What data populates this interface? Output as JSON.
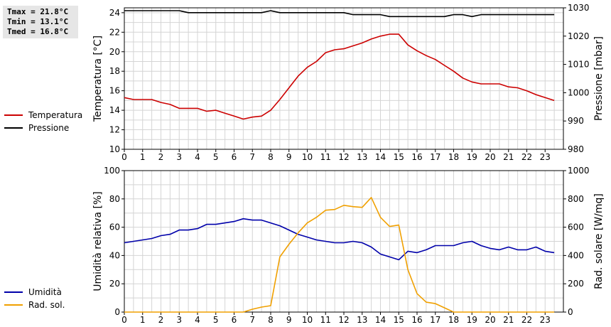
{
  "stats": {
    "tmax": "Tmax = 21.8°C",
    "tmin": "Tmin = 13.1°C",
    "tmed": "Tmed = 16.8°C"
  },
  "chart_data": [
    {
      "type": "line",
      "xlim": [
        0,
        24
      ],
      "x_ticks": [
        "0",
        "1",
        "2",
        "3",
        "4",
        "5",
        "6",
        "7",
        "8",
        "9",
        "10",
        "11",
        "12",
        "13",
        "14",
        "15",
        "16",
        "17",
        "18",
        "19",
        "20",
        "21",
        "22",
        "23"
      ],
      "ylabel": "Temperatura [°C]",
      "ylim": [
        10,
        24.5
      ],
      "y_ticks": [
        "10",
        "12",
        "14",
        "16",
        "18",
        "20",
        "22",
        "24"
      ],
      "y2label": "Pressione [mbar]",
      "y2lim": [
        980,
        1030
      ],
      "y2_ticks": [
        "980",
        "990",
        "1000",
        "1010",
        "1020",
        "1030"
      ],
      "grid": true,
      "legend_placement": "left",
      "series": [
        {
          "name": "Temperatura",
          "axis": "left",
          "color": "#cc0000",
          "points": [
            [
              0,
              15.3
            ],
            [
              0.5,
              15.1
            ],
            [
              1,
              15.1
            ],
            [
              1.5,
              15.1
            ],
            [
              2,
              14.8
            ],
            [
              2.5,
              14.6
            ],
            [
              3,
              14.2
            ],
            [
              3.5,
              14.2
            ],
            [
              4,
              14.2
            ],
            [
              4.5,
              13.9
            ],
            [
              5,
              14.0
            ],
            [
              5.5,
              13.7
            ],
            [
              6,
              13.4
            ],
            [
              6.5,
              13.1
            ],
            [
              7,
              13.3
            ],
            [
              7.5,
              13.4
            ],
            [
              8,
              14.0
            ],
            [
              8.5,
              15.1
            ],
            [
              9,
              16.3
            ],
            [
              9.5,
              17.5
            ],
            [
              10,
              18.4
            ],
            [
              10.5,
              19.0
            ],
            [
              11,
              19.9
            ],
            [
              11.5,
              20.2
            ],
            [
              12,
              20.3
            ],
            [
              12.5,
              20.6
            ],
            [
              13,
              20.9
            ],
            [
              13.5,
              21.3
            ],
            [
              14,
              21.6
            ],
            [
              14.5,
              21.8
            ],
            [
              15,
              21.8
            ],
            [
              15.5,
              20.7
            ],
            [
              16,
              20.1
            ],
            [
              16.5,
              19.6
            ],
            [
              17,
              19.2
            ],
            [
              17.5,
              18.6
            ],
            [
              18,
              18.0
            ],
            [
              18.5,
              17.3
            ],
            [
              19,
              16.9
            ],
            [
              19.5,
              16.7
            ],
            [
              20,
              16.7
            ],
            [
              20.5,
              16.7
            ],
            [
              21,
              16.4
            ],
            [
              21.5,
              16.3
            ],
            [
              22,
              16.0
            ],
            [
              22.5,
              15.6
            ],
            [
              23,
              15.3
            ],
            [
              23.5,
              15.0
            ]
          ]
        },
        {
          "name": "Pressione",
          "axis": "right",
          "color": "#000000",
          "points": [
            [
              0,
              1029.0
            ],
            [
              0.5,
              1029.0
            ],
            [
              1,
              1029.0
            ],
            [
              1.5,
              1029.0
            ],
            [
              2,
              1029.0
            ],
            [
              2.5,
              1029.0
            ],
            [
              3,
              1029.0
            ],
            [
              3.5,
              1028.3
            ],
            [
              4,
              1028.3
            ],
            [
              4.5,
              1028.3
            ],
            [
              5,
              1028.3
            ],
            [
              5.5,
              1028.3
            ],
            [
              6,
              1028.3
            ],
            [
              6.5,
              1028.3
            ],
            [
              7,
              1028.3
            ],
            [
              7.5,
              1028.3
            ],
            [
              8,
              1029.0
            ],
            [
              8.5,
              1028.3
            ],
            [
              9,
              1028.3
            ],
            [
              9.5,
              1028.3
            ],
            [
              10,
              1028.3
            ],
            [
              10.5,
              1028.3
            ],
            [
              11,
              1028.3
            ],
            [
              11.5,
              1028.3
            ],
            [
              12,
              1028.3
            ],
            [
              12.5,
              1027.6
            ],
            [
              13,
              1027.6
            ],
            [
              13.5,
              1027.6
            ],
            [
              14,
              1027.6
            ],
            [
              14.5,
              1026.9
            ],
            [
              15,
              1026.9
            ],
            [
              15.5,
              1026.9
            ],
            [
              16,
              1026.9
            ],
            [
              16.5,
              1026.9
            ],
            [
              17,
              1026.9
            ],
            [
              17.5,
              1026.9
            ],
            [
              18,
              1027.6
            ],
            [
              18.5,
              1027.6
            ],
            [
              19,
              1026.9
            ],
            [
              19.5,
              1027.6
            ],
            [
              20,
              1027.6
            ],
            [
              20.5,
              1027.6
            ],
            [
              21,
              1027.6
            ],
            [
              21.5,
              1027.6
            ],
            [
              22,
              1027.6
            ],
            [
              22.5,
              1027.6
            ],
            [
              23,
              1027.6
            ],
            [
              23.5,
              1027.6
            ]
          ]
        }
      ]
    },
    {
      "type": "line",
      "xlim": [
        0,
        24
      ],
      "x_ticks": [
        "0",
        "1",
        "2",
        "3",
        "4",
        "5",
        "6",
        "7",
        "8",
        "9",
        "10",
        "11",
        "12",
        "13",
        "14",
        "15",
        "16",
        "17",
        "18",
        "19",
        "20",
        "21",
        "22",
        "23"
      ],
      "ylabel": "Umidità relativa [%]",
      "ylim": [
        0,
        100
      ],
      "y_ticks": [
        "0",
        "20",
        "40",
        "60",
        "80",
        "100"
      ],
      "y2label": "Rad. solare [W/mq]",
      "y2lim": [
        0,
        1000
      ],
      "y2_ticks": [
        "0",
        "200",
        "400",
        "600",
        "800",
        "1000"
      ],
      "grid": true,
      "legend_placement": "left",
      "series": [
        {
          "name": "Umidità",
          "axis": "left",
          "color": "#0000aa",
          "points": [
            [
              0,
              49
            ],
            [
              0.5,
              50
            ],
            [
              1,
              51
            ],
            [
              1.5,
              52
            ],
            [
              2,
              54
            ],
            [
              2.5,
              55
            ],
            [
              3,
              58
            ],
            [
              3.5,
              58
            ],
            [
              4,
              59
            ],
            [
              4.5,
              62
            ],
            [
              5,
              62
            ],
            [
              5.5,
              63
            ],
            [
              6,
              64
            ],
            [
              6.5,
              66
            ],
            [
              7,
              65
            ],
            [
              7.5,
              65
            ],
            [
              8,
              63
            ],
            [
              8.5,
              61
            ],
            [
              9,
              58
            ],
            [
              9.5,
              55
            ],
            [
              10,
              53
            ],
            [
              10.5,
              51
            ],
            [
              11,
              50
            ],
            [
              11.5,
              49
            ],
            [
              12,
              49
            ],
            [
              12.5,
              50
            ],
            [
              13,
              49
            ],
            [
              13.5,
              46
            ],
            [
              14,
              41
            ],
            [
              14.5,
              39
            ],
            [
              15,
              37
            ],
            [
              15.5,
              43
            ],
            [
              16,
              42
            ],
            [
              16.5,
              44
            ],
            [
              17,
              47
            ],
            [
              17.5,
              47
            ],
            [
              18,
              47
            ],
            [
              18.5,
              49
            ],
            [
              19,
              50
            ],
            [
              19.5,
              47
            ],
            [
              20,
              45
            ],
            [
              20.5,
              44
            ],
            [
              21,
              46
            ],
            [
              21.5,
              44
            ],
            [
              22,
              44
            ],
            [
              22.5,
              46
            ],
            [
              23,
              43
            ],
            [
              23.5,
              42
            ]
          ]
        },
        {
          "name": "Rad. sol.",
          "axis": "right",
          "color": "#f0a000",
          "points": [
            [
              0,
              0
            ],
            [
              0.5,
              0
            ],
            [
              1,
              0
            ],
            [
              1.5,
              0
            ],
            [
              2,
              0
            ],
            [
              2.5,
              0
            ],
            [
              3,
              0
            ],
            [
              3.5,
              0
            ],
            [
              4,
              0
            ],
            [
              4.5,
              0
            ],
            [
              5,
              0
            ],
            [
              5.5,
              0
            ],
            [
              6,
              0
            ],
            [
              6.5,
              0
            ],
            [
              7,
              20
            ],
            [
              7.5,
              35
            ],
            [
              8,
              45
            ],
            [
              8.5,
              390
            ],
            [
              9,
              480
            ],
            [
              9.5,
              560
            ],
            [
              10,
              630
            ],
            [
              10.5,
              670
            ],
            [
              11,
              720
            ],
            [
              11.5,
              725
            ],
            [
              12,
              755
            ],
            [
              12.5,
              745
            ],
            [
              13,
              740
            ],
            [
              13.5,
              810
            ],
            [
              14,
              670
            ],
            [
              14.5,
              605
            ],
            [
              15,
              615
            ],
            [
              15.5,
              300
            ],
            [
              16,
              130
            ],
            [
              16.5,
              70
            ],
            [
              17,
              60
            ],
            [
              17.5,
              30
            ],
            [
              18,
              0
            ],
            [
              18.5,
              0
            ],
            [
              19,
              0
            ],
            [
              19.5,
              0
            ],
            [
              20,
              0
            ],
            [
              20.5,
              0
            ],
            [
              21,
              0
            ],
            [
              21.5,
              0
            ],
            [
              22,
              0
            ],
            [
              22.5,
              0
            ],
            [
              23,
              0
            ],
            [
              23.5,
              0
            ]
          ]
        }
      ]
    }
  ]
}
